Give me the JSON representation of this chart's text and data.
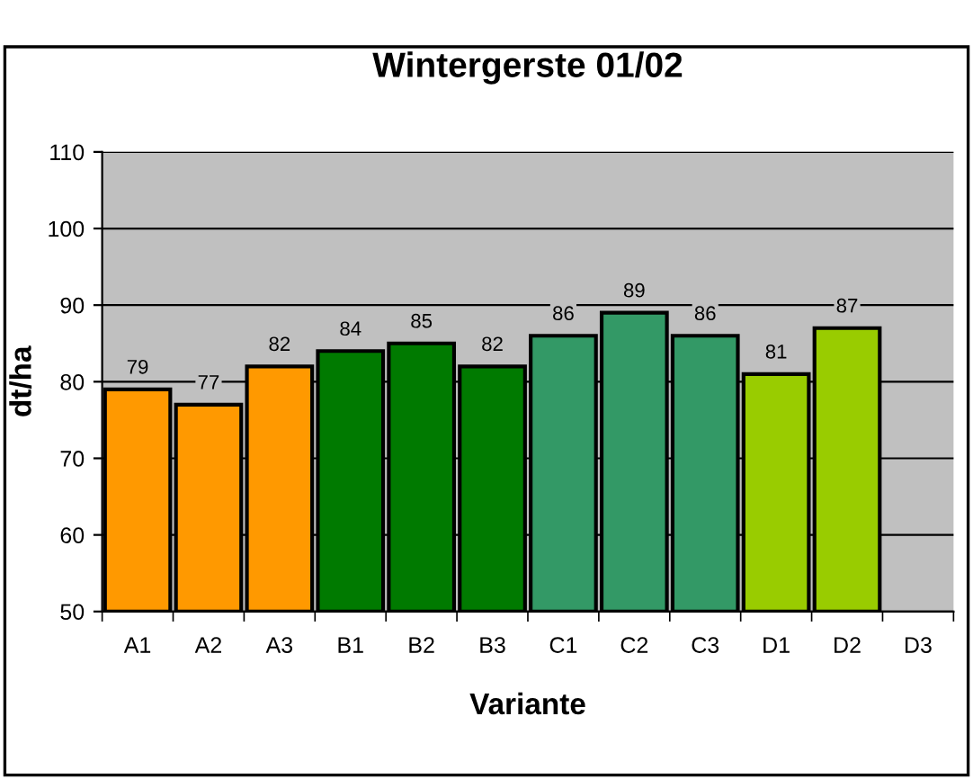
{
  "chart_data": {
    "type": "bar",
    "title": "Wintergerste 01/02",
    "xlabel": "Variante",
    "ylabel": "dt/ha",
    "categories": [
      "A1",
      "A2",
      "A3",
      "B1",
      "B2",
      "B3",
      "C1",
      "C2",
      "C3",
      "D1",
      "D2",
      "D3"
    ],
    "values": [
      79,
      77,
      82,
      84,
      85,
      82,
      86,
      89,
      86,
      81,
      87,
      null
    ],
    "colors": [
      "#ff9900",
      "#ff9900",
      "#ff9900",
      "#007a00",
      "#007a00",
      "#007a00",
      "#339966",
      "#339966",
      "#339966",
      "#99cc00",
      "#99cc00",
      "#99cc00"
    ],
    "ylim": [
      50,
      110
    ],
    "yticks": [
      50,
      60,
      70,
      80,
      90,
      100,
      110
    ],
    "grid": "y",
    "data_labels": true,
    "legend": false
  }
}
